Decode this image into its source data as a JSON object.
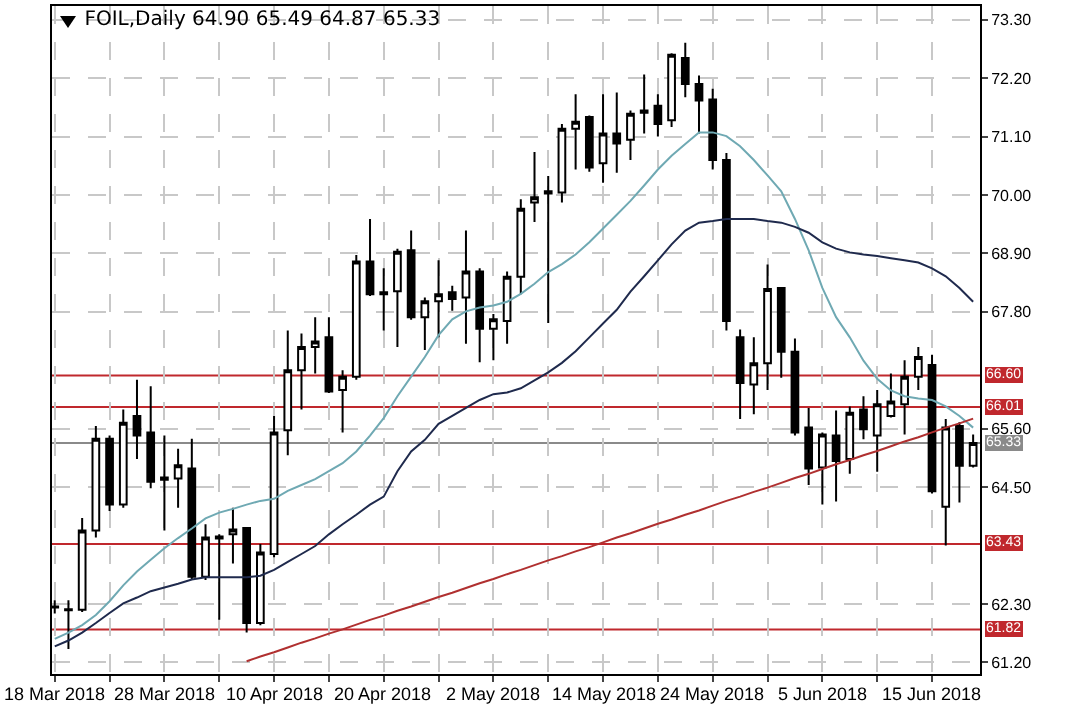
{
  "chart_data": {
    "type": "candlestick",
    "title": "FOIL,Daily 64.90 65.49 64.87 65.33",
    "categories": [
      "18 Mar 2018",
      null,
      null,
      null,
      null,
      null,
      null,
      null,
      "28 Mar 2018",
      null,
      null,
      null,
      null,
      null,
      null,
      null,
      "10 Apr 2018",
      null,
      null,
      null,
      null,
      null,
      null,
      null,
      "20 Apr 2018",
      null,
      null,
      null,
      null,
      null,
      null,
      null,
      "2 May 2018",
      null,
      null,
      null,
      null,
      null,
      null,
      null,
      "14 May 2018",
      null,
      null,
      null,
      null,
      null,
      null,
      null,
      "24 May 2018",
      null,
      null,
      null,
      null,
      null,
      null,
      null,
      "5 Jun 2018",
      null,
      null,
      null,
      null,
      null,
      null,
      null,
      "15 Jun 2018",
      null,
      null,
      null
    ],
    "ohlc": [
      [
        62.23,
        62.37,
        62.12,
        62.25
      ],
      [
        62.2,
        62.37,
        61.45,
        62.18
      ],
      [
        62.19,
        63.92,
        62.15,
        63.68
      ],
      [
        63.68,
        65.65,
        63.55,
        65.41
      ],
      [
        65.41,
        65.47,
        64.05,
        64.17
      ],
      [
        64.17,
        65.96,
        64.11,
        65.71
      ],
      [
        65.84,
        66.52,
        65.03,
        65.47
      ],
      [
        65.53,
        66.4,
        64.48,
        64.6
      ],
      [
        64.68,
        65.47,
        63.68,
        64.64
      ],
      [
        64.66,
        65.22,
        64.11,
        64.91
      ],
      [
        64.85,
        65.41,
        62.75,
        62.81
      ],
      [
        62.81,
        63.8,
        62.75,
        63.55
      ],
      [
        63.57,
        63.61,
        62.0,
        63.53
      ],
      [
        63.61,
        64.11,
        63.06,
        63.7
      ],
      [
        63.73,
        63.75,
        61.76,
        61.94
      ],
      [
        61.94,
        63.43,
        61.9,
        63.27
      ],
      [
        63.24,
        65.84,
        63.18,
        65.53
      ],
      [
        65.57,
        67.45,
        65.1,
        66.7
      ],
      [
        66.7,
        67.39,
        65.96,
        67.14
      ],
      [
        67.14,
        67.7,
        66.64,
        67.24
      ],
      [
        67.32,
        67.7,
        66.27,
        66.3
      ],
      [
        66.33,
        66.7,
        65.53,
        66.58
      ],
      [
        66.58,
        68.87,
        66.52,
        68.75
      ],
      [
        68.75,
        69.55,
        68.1,
        68.13
      ],
      [
        68.17,
        68.62,
        67.45,
        68.13
      ],
      [
        68.19,
        68.99,
        67.14,
        68.93
      ],
      [
        68.96,
        69.33,
        67.65,
        67.7
      ],
      [
        67.7,
        68.07,
        67.08,
        68.0
      ],
      [
        68.0,
        68.77,
        67.32,
        68.13
      ],
      [
        68.17,
        68.29,
        67.82,
        68.04
      ],
      [
        68.07,
        69.33,
        67.2,
        68.56
      ],
      [
        68.56,
        68.62,
        66.85,
        67.48
      ],
      [
        67.48,
        67.76,
        66.89,
        67.66
      ],
      [
        67.63,
        68.56,
        67.2,
        68.46
      ],
      [
        68.46,
        69.92,
        68.13,
        69.74
      ],
      [
        69.86,
        70.81,
        69.49,
        69.96
      ],
      [
        70.03,
        70.36,
        67.59,
        70.07
      ],
      [
        70.05,
        71.34,
        69.86,
        71.25
      ],
      [
        71.25,
        71.9,
        70.48,
        71.38
      ],
      [
        71.47,
        71.5,
        70.44,
        70.52
      ],
      [
        70.6,
        71.9,
        70.23,
        71.16
      ],
      [
        71.16,
        71.93,
        70.42,
        70.97
      ],
      [
        71.04,
        71.59,
        70.66,
        71.53
      ],
      [
        71.55,
        72.27,
        71.16,
        71.59
      ],
      [
        71.68,
        71.9,
        71.1,
        71.34
      ],
      [
        71.41,
        72.67,
        71.28,
        72.64
      ],
      [
        72.58,
        72.87,
        71.84,
        72.09
      ],
      [
        72.09,
        72.25,
        71.16,
        71.78
      ],
      [
        71.8,
        72.0,
        70.48,
        70.66
      ],
      [
        70.66,
        70.79,
        67.45,
        67.63
      ],
      [
        67.32,
        67.47,
        65.78,
        66.46
      ],
      [
        66.43,
        67.32,
        65.87,
        66.83
      ],
      [
        66.83,
        68.69,
        66.33,
        68.23
      ],
      [
        68.25,
        68.27,
        66.56,
        67.05
      ],
      [
        67.05,
        67.3,
        65.47,
        65.53
      ],
      [
        65.62,
        65.99,
        64.54,
        64.85
      ],
      [
        64.87,
        65.53,
        64.17,
        65.49
      ],
      [
        65.47,
        65.94,
        64.23,
        64.99
      ],
      [
        65.03,
        66.02,
        64.75,
        65.9
      ],
      [
        65.96,
        66.21,
        65.4,
        65.59
      ],
      [
        65.47,
        66.33,
        64.79,
        66.06
      ],
      [
        65.84,
        66.64,
        65.81,
        66.11
      ],
      [
        66.06,
        66.89,
        65.49,
        66.58
      ],
      [
        66.58,
        67.14,
        66.33,
        66.95
      ],
      [
        66.8,
        66.99,
        64.38,
        64.42
      ],
      [
        64.13,
        65.78,
        63.4,
        65.62
      ],
      [
        65.65,
        65.72,
        64.21,
        64.9
      ],
      [
        64.9,
        65.49,
        64.87,
        65.33
      ]
    ],
    "series": [
      {
        "type": "line",
        "color": "#6fa9b3",
        "values": [
          61.64,
          61.76,
          61.9,
          62.09,
          62.35,
          62.65,
          62.91,
          63.13,
          63.35,
          63.54,
          63.72,
          63.91,
          64.02,
          64.09,
          64.17,
          64.24,
          64.28,
          64.43,
          64.54,
          64.65,
          64.8,
          64.95,
          65.17,
          65.47,
          65.8,
          66.21,
          66.58,
          66.95,
          67.36,
          67.66,
          67.81,
          67.88,
          67.92,
          67.99,
          68.14,
          68.33,
          68.55,
          68.7,
          68.88,
          69.11,
          69.37,
          69.63,
          69.89,
          70.18,
          70.48,
          70.74,
          70.96,
          71.18,
          71.18,
          71.11,
          70.92,
          70.66,
          70.37,
          70.07,
          69.55,
          68.96,
          68.25,
          67.7,
          67.32,
          66.88,
          66.54,
          66.32,
          66.21,
          66.17,
          66.14,
          66.02,
          65.84,
          65.62
        ]
      },
      {
        "type": "line",
        "color": "#1f2a4d",
        "values": [
          61.5,
          61.61,
          61.76,
          61.94,
          62.13,
          62.31,
          62.42,
          62.54,
          62.61,
          62.68,
          62.76,
          62.8,
          62.8,
          62.8,
          62.8,
          62.83,
          62.94,
          63.09,
          63.24,
          63.39,
          63.61,
          63.8,
          63.98,
          64.17,
          64.32,
          64.8,
          65.17,
          65.39,
          65.69,
          65.84,
          65.99,
          66.14,
          66.25,
          66.28,
          66.36,
          66.51,
          66.66,
          66.84,
          67.06,
          67.32,
          67.58,
          67.84,
          68.18,
          68.47,
          68.77,
          69.07,
          69.33,
          69.48,
          69.51,
          69.55,
          69.55,
          69.55,
          69.51,
          69.48,
          69.4,
          69.29,
          69.11,
          68.99,
          68.92,
          68.88,
          68.85,
          68.81,
          68.77,
          68.73,
          68.62,
          68.47,
          68.25,
          67.99
        ]
      },
      {
        "type": "line",
        "color": "#b03030",
        "values": [
          null,
          null,
          null,
          null,
          null,
          null,
          null,
          null,
          null,
          null,
          null,
          null,
          null,
          null,
          61.22,
          61.31,
          61.39,
          61.48,
          61.57,
          61.65,
          61.74,
          61.82,
          61.91,
          62.0,
          62.08,
          62.17,
          62.25,
          62.34,
          62.43,
          62.51,
          62.6,
          62.69,
          62.77,
          62.86,
          62.94,
          63.03,
          63.12,
          63.2,
          63.29,
          63.37,
          63.46,
          63.55,
          63.63,
          63.72,
          63.81,
          63.89,
          63.98,
          64.06,
          64.15,
          64.24,
          64.32,
          64.41,
          64.49,
          64.58,
          64.67,
          64.75,
          64.84,
          64.93,
          65.01,
          65.1,
          65.18,
          65.27,
          65.36,
          65.44,
          65.53,
          65.62,
          65.7,
          65.79
        ]
      }
    ],
    "ylim": [
      60.98,
      73.56
    ],
    "yticks": [
      {
        "value": 73.3,
        "label": "73.30"
      },
      {
        "value": 72.2,
        "label": "72.20"
      },
      {
        "value": 71.1,
        "label": "71.10"
      },
      {
        "value": 70,
        "label": "70.00"
      },
      {
        "value": 68.9,
        "label": "68.90"
      },
      {
        "value": 67.8,
        "label": "67.80"
      },
      {
        "value": 65.6,
        "label": "65.60"
      },
      {
        "value": 64.5,
        "label": "64.50"
      },
      {
        "value": 62.3,
        "label": "62.30"
      },
      {
        "value": 61.2,
        "label": "61.20"
      }
    ],
    "ref_lines": [
      {
        "axis": "y",
        "value": 66.6,
        "label": "66.60",
        "color": "#c0282d"
      },
      {
        "axis": "y",
        "value": 66.01,
        "label": "66.01",
        "color": "#c0282d"
      },
      {
        "axis": "y",
        "value": 63.43,
        "label": "63.43",
        "color": "#c0282d"
      },
      {
        "axis": "y",
        "value": 61.82,
        "label": "61.82",
        "color": "#c0282d"
      },
      {
        "axis": "y",
        "value": 65.33,
        "label": "65.33",
        "color": "#8a8a8a"
      }
    ],
    "grid": true
  }
}
